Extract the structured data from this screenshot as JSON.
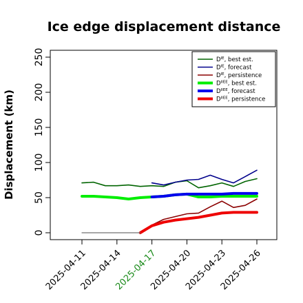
{
  "chart_data": {
    "type": "line",
    "title": "Ice edge displacement distance",
    "xlabel": "",
    "ylabel": "Displacement (km)",
    "x_ticks": [
      "2025-04-11",
      "2025-04-14",
      "2025-04-17",
      "2025-04-20",
      "2025-04-23",
      "2025-04-26"
    ],
    "highlighted_tick": "2025-04-17",
    "highlight_color": "#1a8a1a",
    "ylim": [
      0,
      260
    ],
    "y_ticks": [
      0,
      50,
      100,
      150,
      200,
      250
    ],
    "grid": false,
    "legend_position": "top-right",
    "legend_entries": [
      {
        "base": "D",
        "sup": "IE",
        "text": ", best est."
      },
      {
        "base": "D",
        "sup": "IE",
        "text": ", forecast"
      },
      {
        "base": "D",
        "sup": "IE",
        "text": ", persistence"
      },
      {
        "base": "D",
        "sup": "IIEE",
        "text": ", best est."
      },
      {
        "base": "D",
        "sup": "IIEE",
        "text": ", forecast"
      },
      {
        "base": "D",
        "sup": "IIEE",
        "text": ", persistence"
      }
    ],
    "series": [
      {
        "key": "ie_best",
        "color": "#006400",
        "weight": "thin",
        "points": [
          [
            "2025-04-11",
            71
          ],
          [
            "2025-04-12",
            72
          ],
          [
            "2025-04-13",
            67
          ],
          [
            "2025-04-14",
            67
          ],
          [
            "2025-04-15",
            68
          ],
          [
            "2025-04-16",
            66
          ],
          [
            "2025-04-17",
            67
          ],
          [
            "2025-04-18",
            66
          ],
          [
            "2025-04-19",
            72
          ],
          [
            "2025-04-20",
            74
          ],
          [
            "2025-04-21",
            64
          ],
          [
            "2025-04-22",
            67
          ],
          [
            "2025-04-23",
            71
          ],
          [
            "2025-04-24",
            66
          ],
          [
            "2025-04-25",
            73
          ],
          [
            "2025-04-26",
            77
          ]
        ]
      },
      {
        "key": "ie_forecast",
        "color": "#00008b",
        "weight": "thin",
        "points": [
          [
            "2025-04-17",
            71
          ],
          [
            "2025-04-18",
            68
          ],
          [
            "2025-04-19",
            72
          ],
          [
            "2025-04-20",
            75
          ],
          [
            "2025-04-21",
            76
          ],
          [
            "2025-04-22",
            82
          ],
          [
            "2025-04-23",
            76
          ],
          [
            "2025-04-24",
            71
          ],
          [
            "2025-04-25",
            80
          ],
          [
            "2025-04-26",
            89
          ]
        ]
      },
      {
        "key": "ie_persistence",
        "color": "#8b0000",
        "weight": "thin",
        "points": [
          [
            "2025-04-16",
            0
          ],
          [
            "2025-04-17",
            11
          ],
          [
            "2025-04-18",
            19
          ],
          [
            "2025-04-19",
            23
          ],
          [
            "2025-04-20",
            27
          ],
          [
            "2025-04-21",
            28
          ],
          [
            "2025-04-22",
            37
          ],
          [
            "2025-04-23",
            45
          ],
          [
            "2025-04-24",
            36
          ],
          [
            "2025-04-25",
            39
          ],
          [
            "2025-04-26",
            48
          ]
        ]
      },
      {
        "key": "iiee_best",
        "color": "#00ee00",
        "weight": "thick",
        "points": [
          [
            "2025-04-11",
            52
          ],
          [
            "2025-04-12",
            52
          ],
          [
            "2025-04-13",
            51
          ],
          [
            "2025-04-14",
            50
          ],
          [
            "2025-04-15",
            48
          ],
          [
            "2025-04-16",
            50
          ],
          [
            "2025-04-17",
            51
          ],
          [
            "2025-04-18",
            52
          ],
          [
            "2025-04-19",
            54
          ],
          [
            "2025-04-20",
            55
          ],
          [
            "2025-04-21",
            51
          ],
          [
            "2025-04-22",
            51
          ],
          [
            "2025-04-23",
            52
          ],
          [
            "2025-04-24",
            52
          ],
          [
            "2025-04-25",
            52
          ],
          [
            "2025-04-26",
            52
          ]
        ]
      },
      {
        "key": "iiee_forecast",
        "color": "#0000ee",
        "weight": "thick",
        "points": [
          [
            "2025-04-17",
            51
          ],
          [
            "2025-04-18",
            52
          ],
          [
            "2025-04-19",
            54
          ],
          [
            "2025-04-20",
            55
          ],
          [
            "2025-04-21",
            55
          ],
          [
            "2025-04-22",
            55
          ],
          [
            "2025-04-23",
            55
          ],
          [
            "2025-04-24",
            56
          ],
          [
            "2025-04-25",
            56
          ],
          [
            "2025-04-26",
            56
          ]
        ]
      },
      {
        "key": "iiee_persistence",
        "color": "#ee0000",
        "weight": "thick",
        "points": [
          [
            "2025-04-16",
            0
          ],
          [
            "2025-04-17",
            10
          ],
          [
            "2025-04-18",
            15
          ],
          [
            "2025-04-19",
            18
          ],
          [
            "2025-04-20",
            20
          ],
          [
            "2025-04-21",
            22
          ],
          [
            "2025-04-22",
            25
          ],
          [
            "2025-04-23",
            28
          ],
          [
            "2025-04-24",
            29
          ],
          [
            "2025-04-25",
            29
          ],
          [
            "2025-04-26",
            29
          ]
        ]
      },
      {
        "key": "zero_baseline",
        "color": "#707070",
        "weight": "hair",
        "points": [
          [
            "2025-04-11",
            0
          ],
          [
            "2025-04-16",
            0
          ]
        ]
      }
    ]
  }
}
